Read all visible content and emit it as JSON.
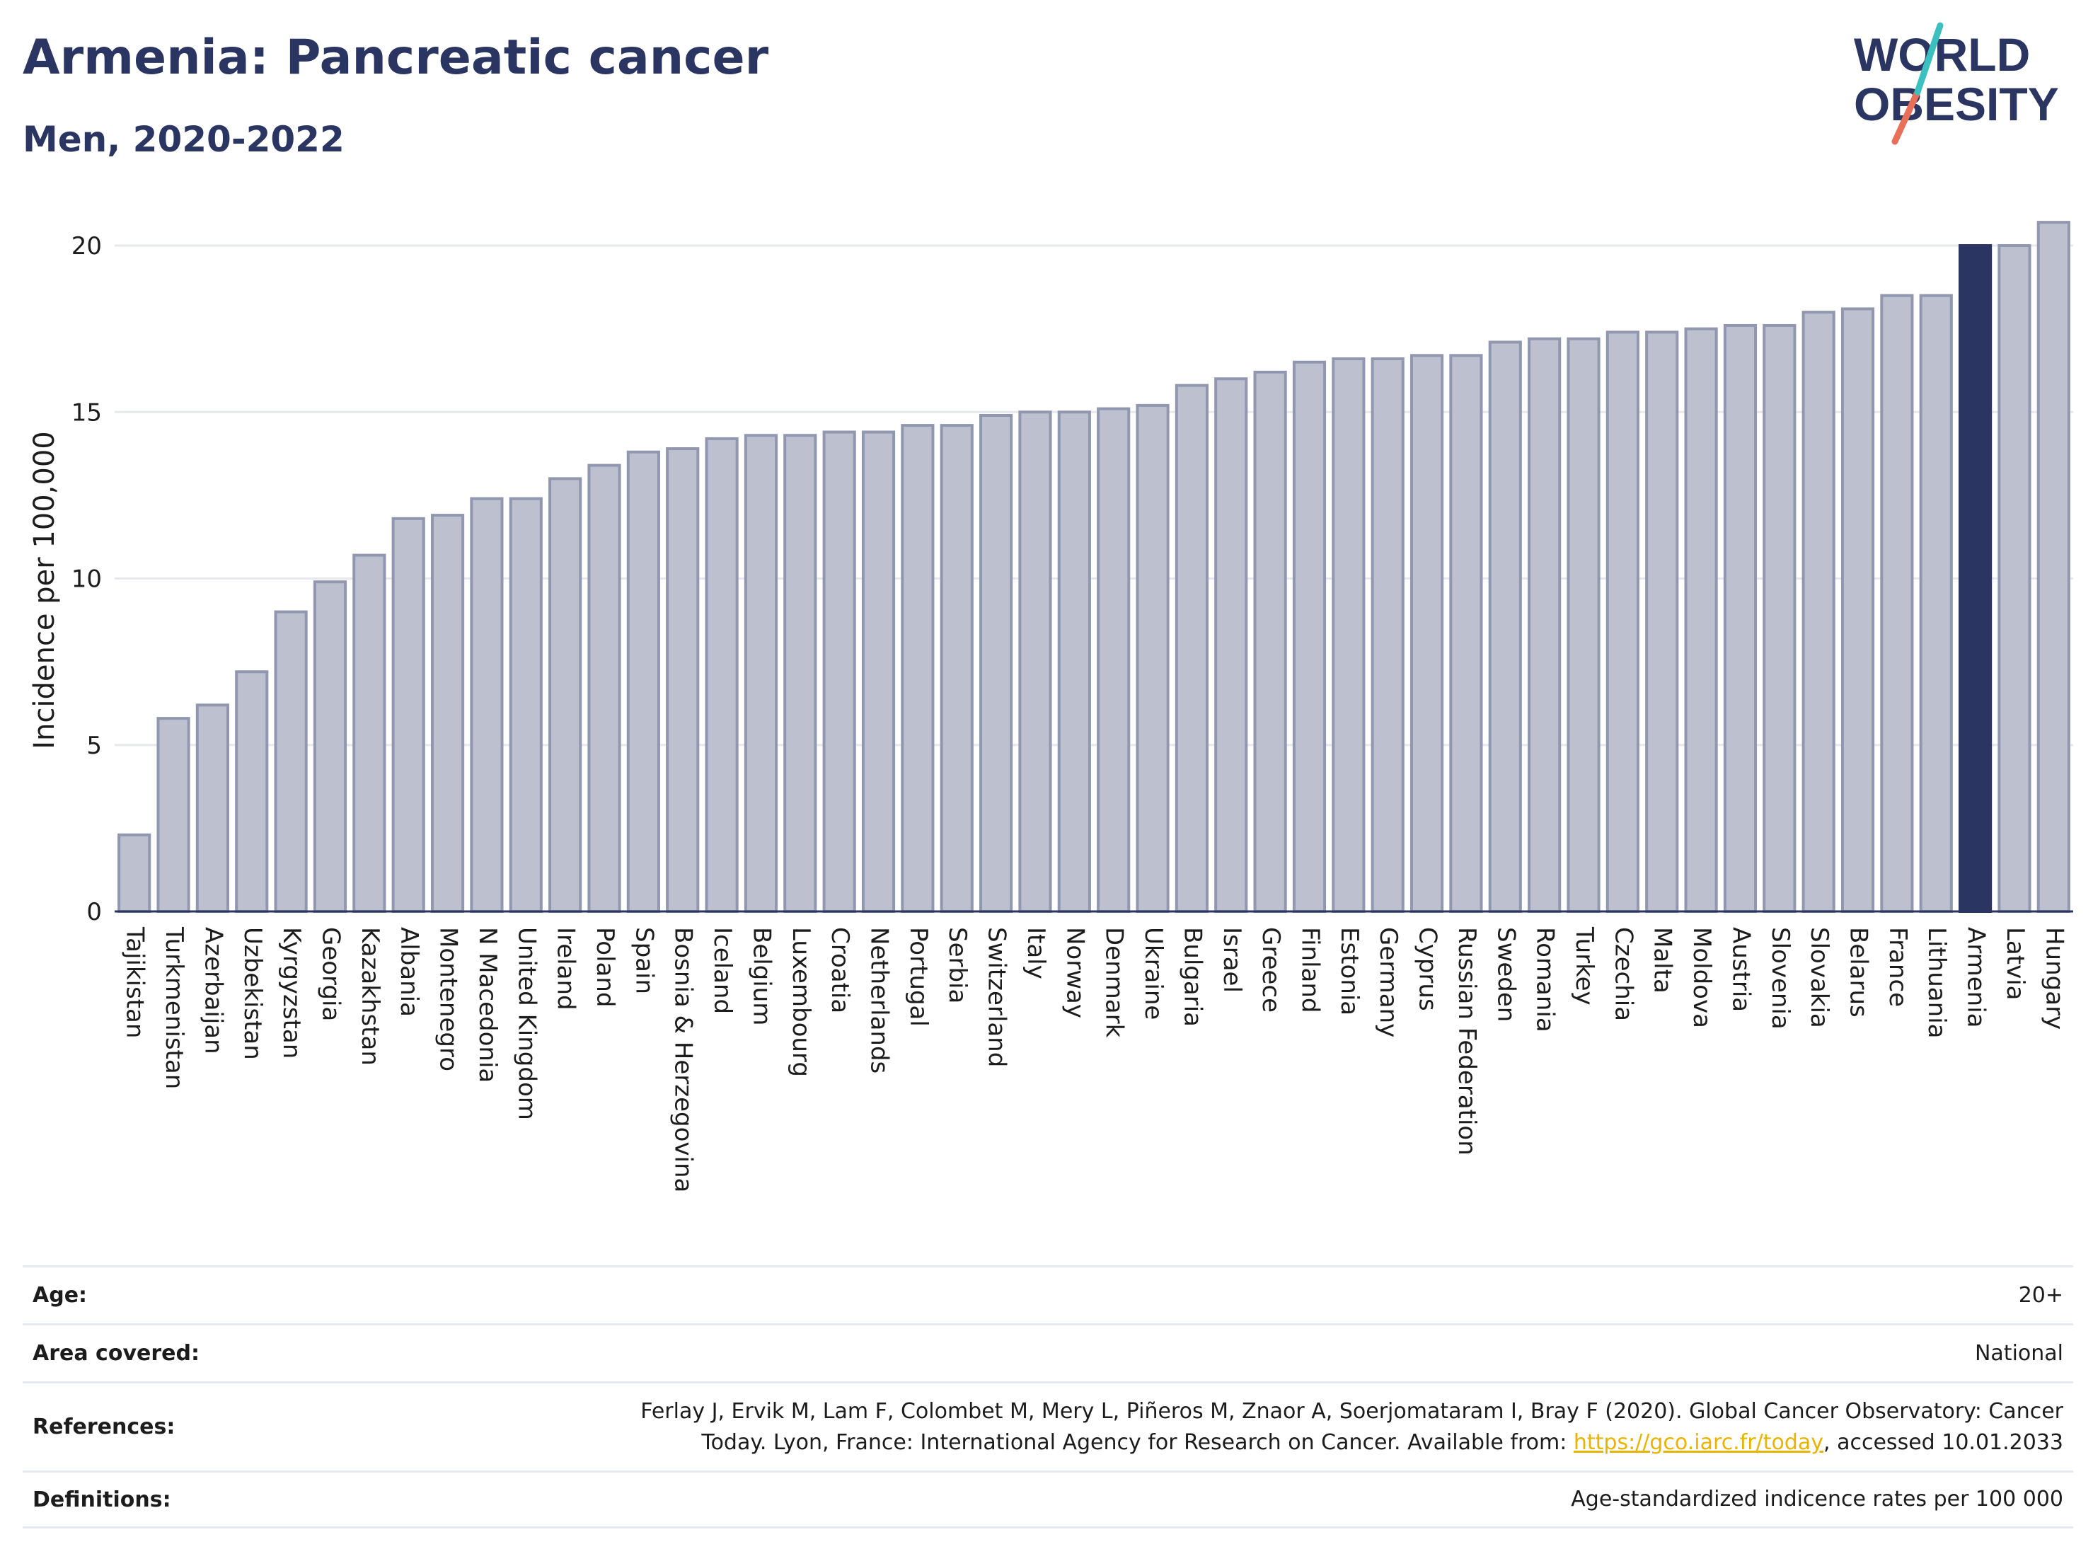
{
  "header": {
    "title": "Armenia: Pancreatic cancer",
    "subtitle": "Men, 2020-2022"
  },
  "logo": {
    "line1": "WORLD",
    "line2": "OBESITY",
    "icon": "world-obesity-logo"
  },
  "colors": {
    "bar": "#bcc0cf",
    "bar_stroke": "#9297b0",
    "highlight": "#2b3562",
    "grid": "#e6e8ee",
    "link": "#e8b400"
  },
  "chart_data": {
    "type": "bar",
    "title": "Armenia: Pancreatic cancer",
    "subtitle": "Men, 2020-2022",
    "xlabel": "",
    "ylabel": "Incidence per 100,000",
    "ylim": [
      0,
      21
    ],
    "yticks": [
      0,
      5,
      10,
      15,
      20
    ],
    "grid": true,
    "highlight": "Armenia",
    "categories": [
      "Tajikistan",
      "Turkmenistan",
      "Azerbaijan",
      "Uzbekistan",
      "Kyrgyzstan",
      "Georgia",
      "Kazakhstan",
      "Albania",
      "Montenegro",
      "N Macedonia",
      "United Kingdom",
      "Ireland",
      "Poland",
      "Spain",
      "Bosnia & Herzegovina",
      "Iceland",
      "Belgium",
      "Luxembourg",
      "Croatia",
      "Netherlands",
      "Portugal",
      "Serbia",
      "Switzerland",
      "Italy",
      "Norway",
      "Denmark",
      "Ukraine",
      "Bulgaria",
      "Israel",
      "Greece",
      "Finland",
      "Estonia",
      "Germany",
      "Cyprus",
      "Russian Federation",
      "Sweden",
      "Romania",
      "Turkey",
      "Czechia",
      "Malta",
      "Moldova",
      "Austria",
      "Slovenia",
      "Slovakia",
      "Belarus",
      "France",
      "Lithuania",
      "Armenia",
      "Latvia",
      "Hungary"
    ],
    "values": [
      2.3,
      5.8,
      6.2,
      7.2,
      9.0,
      9.9,
      10.7,
      11.8,
      11.9,
      12.4,
      12.4,
      13.0,
      13.4,
      13.8,
      13.9,
      14.2,
      14.3,
      14.3,
      14.4,
      14.4,
      14.6,
      14.6,
      14.9,
      15.0,
      15.0,
      15.1,
      15.2,
      15.8,
      16.0,
      16.2,
      16.5,
      16.6,
      16.6,
      16.7,
      16.7,
      17.1,
      17.2,
      17.2,
      17.4,
      17.4,
      17.5,
      17.6,
      17.6,
      18.0,
      18.1,
      18.5,
      18.5,
      20.0,
      20.0,
      20.7
    ]
  },
  "meta": [
    {
      "key": "Age:",
      "value": "20+"
    },
    {
      "key": "Area covered:",
      "value": "National"
    },
    {
      "key": "References:",
      "value_line1": "Ferlay J, Ervik M, Lam F, Colombet M, Mery L, Piñeros M, Znaor A, Soerjomataram I, Bray F (2020). Global Cancer Observatory: Cancer",
      "value_line2_pre": "Today. Lyon, France: International Agency for Research on Cancer. Available from: ",
      "link": "https://gco.iarc.fr/today",
      "value_line2_post": ", accessed 10.01.2033"
    },
    {
      "key": "Definitions:",
      "value": "Age-standardized indicence rates per 100 000"
    }
  ]
}
